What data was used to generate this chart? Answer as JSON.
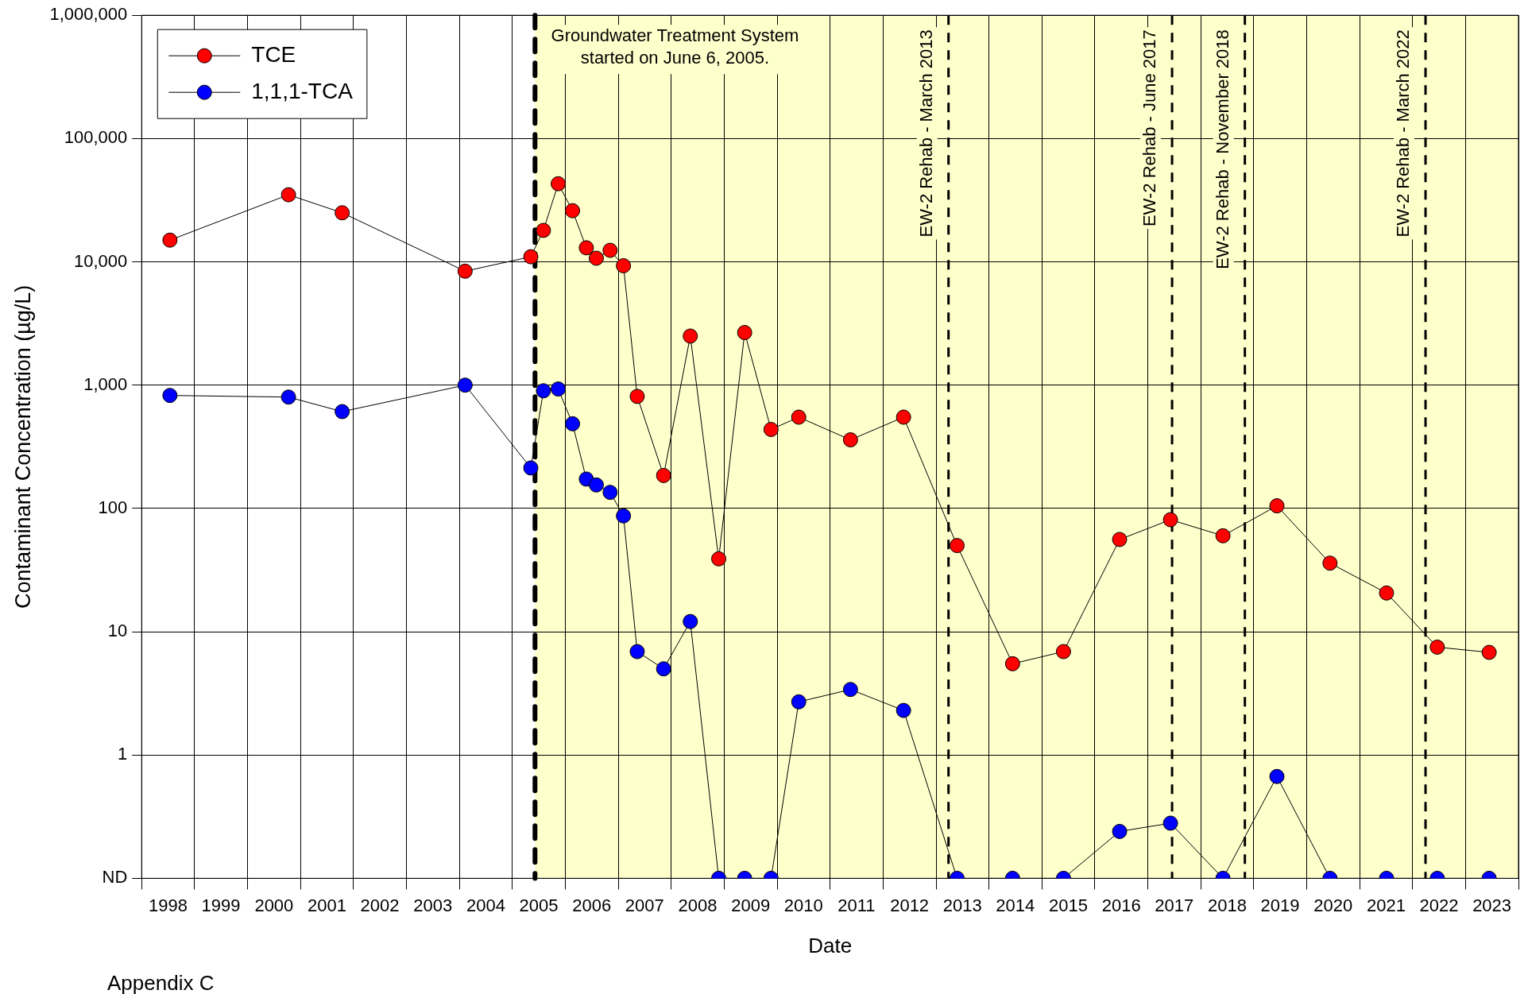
{
  "chart_data": {
    "type": "line",
    "xlabel": "Date",
    "ylabel": "Contaminant Concentration (µg/L)",
    "x": [
      "1998-07-15",
      "2000-10-10",
      "2001-10-15",
      "2004-02-10",
      "2005-05-08",
      "2005-08-03",
      "2005-11-13",
      "2006-02-20",
      "2006-05-26",
      "2006-08-03",
      "2006-11-06",
      "2007-02-06",
      "2007-05-12",
      "2007-11-10",
      "2008-05-12",
      "2008-11-24",
      "2009-05-22",
      "2009-11-20",
      "2010-05-30",
      "2011-05-22",
      "2012-05-22",
      "2013-05-26",
      "2014-06-13",
      "2015-05-30",
      "2016-06-20",
      "2017-06-06",
      "2018-06-03",
      "2019-06-10",
      "2020-06-10",
      "2021-07-05",
      "2022-06-20",
      "2023-06-13"
    ],
    "series": [
      {
        "name": "TCE",
        "color": "#ff0000",
        "values": [
          15000,
          35000,
          25000,
          8400,
          11000,
          18000,
          43000,
          26000,
          13000,
          10700,
          12400,
          9300,
          810,
          185,
          2500,
          39,
          2670,
          437,
          550,
          360,
          550,
          50,
          5.5,
          6.9,
          56,
          81,
          60,
          105,
          36,
          20.6,
          7.5,
          6.8
        ]
      },
      {
        "name": "1,1,1-TCA",
        "color": "#0000ff",
        "values": [
          825,
          800,
          610,
          1000,
          213,
          900,
          930,
          486,
          173,
          155,
          135,
          87,
          6.9,
          5.0,
          12.1,
          0.1,
          0.1,
          0.1,
          2.7,
          3.4,
          2.3,
          0.1,
          0.1,
          0.1,
          0.24,
          0.28,
          0.1,
          0.67,
          0.1,
          0.1,
          0.1,
          0.1
        ]
      }
    ],
    "xlim": [
      "1998-01-01",
      "2024-01-01"
    ],
    "xticks": [
      {
        "value": "1998-01-01",
        "label": null
      },
      {
        "value": "1998-07-02",
        "label": "1998"
      },
      {
        "value": "1999-01-01",
        "label": null
      },
      {
        "value": "1999-07-02",
        "label": "1999"
      },
      {
        "value": "2000-01-01",
        "label": null
      },
      {
        "value": "2000-07-02",
        "label": "2000"
      },
      {
        "value": "2001-01-01",
        "label": null
      },
      {
        "value": "2001-07-02",
        "label": "2001"
      },
      {
        "value": "2002-01-01",
        "label": null
      },
      {
        "value": "2002-07-02",
        "label": "2002"
      },
      {
        "value": "2003-01-01",
        "label": null
      },
      {
        "value": "2003-07-02",
        "label": "2003"
      },
      {
        "value": "2004-01-01",
        "label": null
      },
      {
        "value": "2004-07-02",
        "label": "2004"
      },
      {
        "value": "2005-01-01",
        "label": null
      },
      {
        "value": "2005-07-02",
        "label": "2005"
      },
      {
        "value": "2006-01-01",
        "label": null
      },
      {
        "value": "2006-07-02",
        "label": "2006"
      },
      {
        "value": "2007-01-01",
        "label": null
      },
      {
        "value": "2007-07-02",
        "label": "2007"
      },
      {
        "value": "2008-01-01",
        "label": null
      },
      {
        "value": "2008-07-02",
        "label": "2008"
      },
      {
        "value": "2009-01-01",
        "label": null
      },
      {
        "value": "2009-07-02",
        "label": "2009"
      },
      {
        "value": "2010-01-01",
        "label": null
      },
      {
        "value": "2010-07-02",
        "label": "2010"
      },
      {
        "value": "2011-01-01",
        "label": null
      },
      {
        "value": "2011-07-02",
        "label": "2011"
      },
      {
        "value": "2012-01-01",
        "label": null
      },
      {
        "value": "2012-07-02",
        "label": "2012"
      },
      {
        "value": "2013-01-01",
        "label": null
      },
      {
        "value": "2013-07-02",
        "label": "2013"
      },
      {
        "value": "2014-01-01",
        "label": null
      },
      {
        "value": "2014-07-02",
        "label": "2014"
      },
      {
        "value": "2015-01-01",
        "label": null
      },
      {
        "value": "2015-07-02",
        "label": "2015"
      },
      {
        "value": "2016-01-01",
        "label": null
      },
      {
        "value": "2016-07-02",
        "label": "2016"
      },
      {
        "value": "2017-01-01",
        "label": null
      },
      {
        "value": "2017-07-02",
        "label": "2017"
      },
      {
        "value": "2018-01-01",
        "label": null
      },
      {
        "value": "2018-07-02",
        "label": "2018"
      },
      {
        "value": "2019-01-01",
        "label": null
      },
      {
        "value": "2019-07-02",
        "label": "2019"
      },
      {
        "value": "2020-01-01",
        "label": null
      },
      {
        "value": "2020-07-02",
        "label": "2020"
      },
      {
        "value": "2021-01-01",
        "label": null
      },
      {
        "value": "2021-07-02",
        "label": "2021"
      },
      {
        "value": "2022-01-01",
        "label": null
      },
      {
        "value": "2022-07-02",
        "label": "2022"
      },
      {
        "value": "2023-01-01",
        "label": null
      },
      {
        "value": "2023-07-02",
        "label": "2023"
      },
      {
        "value": "2024-01-01",
        "label": null
      }
    ],
    "log": "y",
    "ylim": [
      0.1,
      1000000
    ],
    "yticks": [
      {
        "value": 0.1,
        "label": "ND"
      },
      1,
      10,
      100,
      {
        "value": 1000,
        "label": "1,000"
      },
      {
        "value": 10000,
        "label": "10,000"
      },
      {
        "value": 100000,
        "label": "100,000"
      },
      {
        "value": 1000000,
        "label": "1,000,000"
      }
    ],
    "grid": true,
    "legend": "top left",
    "marker": "circle",
    "line_style": "solid",
    "bands": [
      {
        "axis": "x",
        "from": "2005-06-06",
        "to": "2024-01-01",
        "color": "#ffffcc"
      }
    ],
    "ref_lines": [
      {
        "axis": "x",
        "value": "2005-06-06",
        "label": "Groundwater Treatment System\nstarted on June 6, 2005.",
        "line_style": "dashed",
        "color": "#000000"
      },
      {
        "axis": "x",
        "value": "2013-03-28",
        "label": "EW-2 Rehab - March 2013",
        "line_style": "dashed",
        "color": "#000000"
      },
      {
        "axis": "x",
        "value": "2017-06-17",
        "label": "EW-2 Rehab - June 2017",
        "line_style": "dashed",
        "color": "#000000"
      },
      {
        "axis": "x",
        "value": "2018-11-01",
        "label": "EW-2 Rehab - November 2018",
        "line_style": "dashed",
        "color": "#000000"
      },
      {
        "axis": "x",
        "value": "2022-03-31",
        "label": "EW-2 Rehab - March 2022",
        "line_style": "dashed",
        "color": "#000000"
      }
    ],
    "annotations": [
      "Appendix C"
    ]
  }
}
